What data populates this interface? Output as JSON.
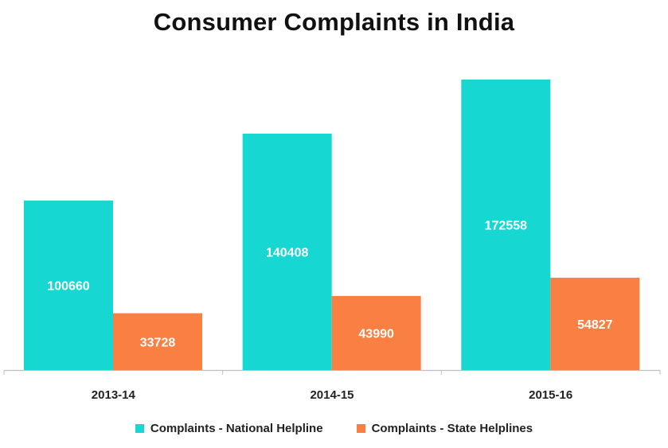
{
  "chart_data": {
    "type": "bar",
    "title": "Consumer Complaints in India",
    "categories": [
      "2013-14",
      "2014-15",
      "2015-16"
    ],
    "series": [
      {
        "name": "Complaints - National Helpline",
        "values": [
          100660,
          140408,
          172558
        ],
        "color": "#17D7D2"
      },
      {
        "name": "Complaints - State Helplines",
        "values": [
          33728,
          43990,
          54827
        ],
        "color": "#FA7F42"
      }
    ],
    "ylim": [
      0,
      200000
    ],
    "grid": false,
    "data_labels": true,
    "legend_position": "bottom"
  }
}
